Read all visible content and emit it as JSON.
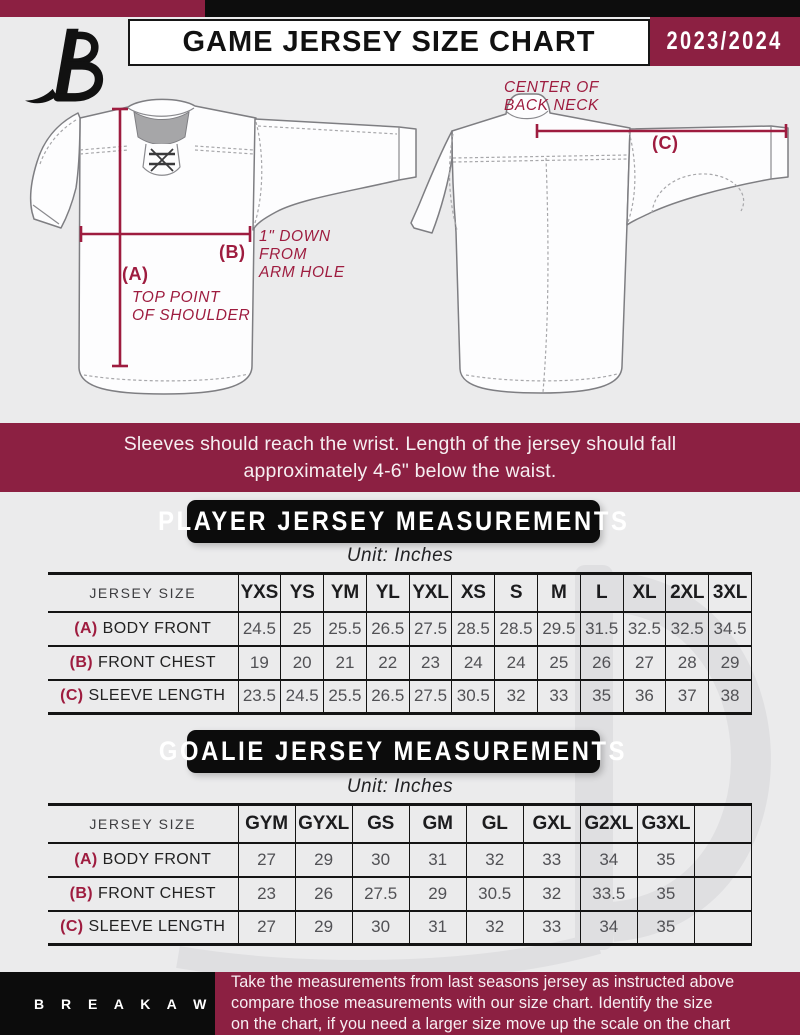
{
  "colors": {
    "maroon_banner": "#8c2042",
    "maroon_accent": "#9e1c3f",
    "black": "#0d0d0d",
    "page_bg": "#ebebec"
  },
  "header": {
    "title": "GAME JERSEY SIZE CHART",
    "season": "2023/2024"
  },
  "diagram": {
    "front": {
      "a_tag": "(A)",
      "a_caption": [
        "TOP POINT",
        "OF SHOULDER"
      ],
      "b_tag": "(B)",
      "b_caption": [
        "1\" DOWN",
        "FROM",
        "ARM HOLE"
      ]
    },
    "back": {
      "c_tag": "(C)",
      "c_caption": [
        "CENTER OF",
        "BACK NECK"
      ]
    }
  },
  "notice": {
    "line1": "Sleeves should reach the wrist. Length of the jersey should fall",
    "line2": "approximately 4-6\" below the waist."
  },
  "player_section": {
    "title": "PLAYER JERSEY MEASUREMENTS",
    "unit_label": "Unit: Inches",
    "table": {
      "corner_label": "JERSEY SIZE",
      "columns": [
        "YXS",
        "YS",
        "YM",
        "YL",
        "YXL",
        "XS",
        "S",
        "M",
        "L",
        "XL",
        "2XL",
        "3XL"
      ],
      "rows": [
        {
          "tag": "(A)",
          "label": "BODY FRONT",
          "values": [
            "24.5",
            "25",
            "25.5",
            "26.5",
            "27.5",
            "28.5",
            "28.5",
            "29.5",
            "31.5",
            "32.5",
            "32.5",
            "34.5"
          ]
        },
        {
          "tag": "(B)",
          "label": "FRONT CHEST",
          "values": [
            "19",
            "20",
            "21",
            "22",
            "23",
            "24",
            "24",
            "25",
            "26",
            "27",
            "28",
            "29"
          ]
        },
        {
          "tag": "(C)",
          "label": "SLEEVE LENGTH",
          "values": [
            "23.5",
            "24.5",
            "25.5",
            "26.5",
            "27.5",
            "30.5",
            "32",
            "33",
            "35",
            "36",
            "37",
            "38"
          ]
        }
      ]
    }
  },
  "goalie_section": {
    "title": "GOALIE JERSEY MEASUREMENTS",
    "unit_label": "Unit: Inches",
    "table": {
      "corner_label": "JERSEY SIZE",
      "columns": [
        "GYM",
        "GYXL",
        "GS",
        "GM",
        "GL",
        "GXL",
        "G2XL",
        "G3XL",
        ""
      ],
      "rows": [
        {
          "tag": "(A)",
          "label": "BODY FRONT",
          "values": [
            "27",
            "29",
            "30",
            "31",
            "32",
            "33",
            "34",
            "35",
            ""
          ]
        },
        {
          "tag": "(B)",
          "label": "FRONT CHEST",
          "values": [
            "23",
            "26",
            "27.5",
            "29",
            "30.5",
            "32",
            "33.5",
            "35",
            ""
          ]
        },
        {
          "tag": "(C)",
          "label": "SLEEVE LENGTH",
          "values": [
            "27",
            "29",
            "30",
            "31",
            "32",
            "33",
            "34",
            "35",
            ""
          ]
        }
      ]
    }
  },
  "footer": {
    "brand": "B R E A K A W A Y",
    "lines": [
      "Take the measurements from last seasons jersey as instructed above",
      "compare those measurements  with our size chart. Identify the size",
      "on the chart, if you need a larger size move up the scale on the chart"
    ]
  }
}
